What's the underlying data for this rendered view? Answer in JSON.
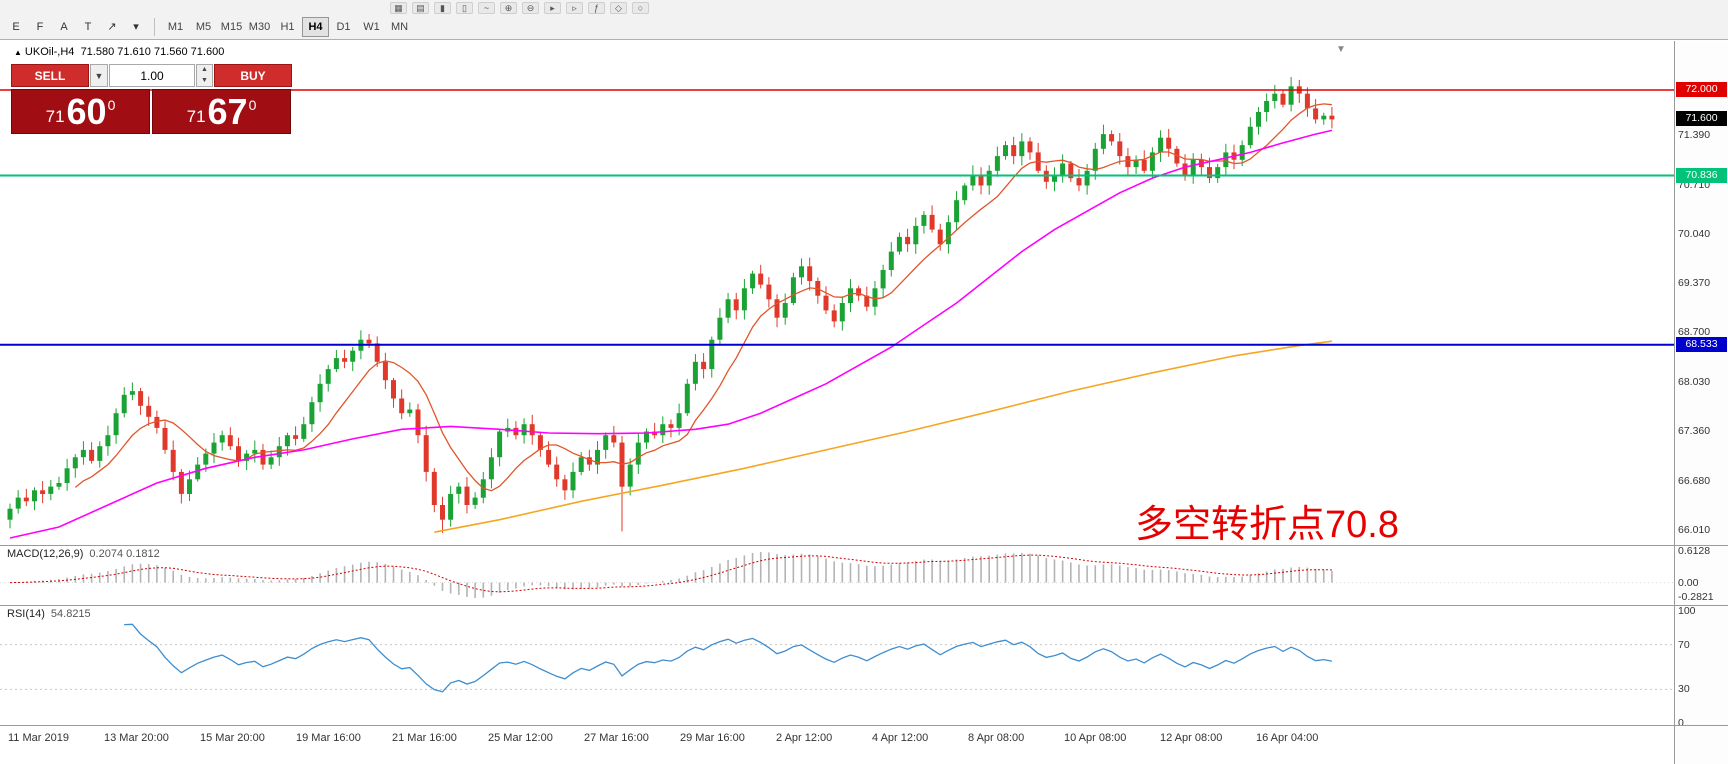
{
  "toolbar": {
    "top_icons": [
      {
        "name": "new-chart-icon",
        "glyph": "▦"
      },
      {
        "name": "profiles-icon",
        "glyph": "▤"
      },
      {
        "name": "chart-bars-icon",
        "glyph": "▮"
      },
      {
        "name": "chart-candles-icon",
        "glyph": "▯"
      },
      {
        "name": "chart-line-icon",
        "glyph": "~"
      },
      {
        "name": "zoom-in-icon",
        "glyph": "⊕"
      },
      {
        "name": "zoom-out-icon",
        "glyph": "⊖"
      },
      {
        "name": "auto-scroll-icon",
        "glyph": "▸"
      },
      {
        "name": "chart-shift-icon",
        "glyph": "▹"
      },
      {
        "name": "indicators-icon",
        "glyph": "ƒ"
      },
      {
        "name": "templates-icon",
        "glyph": "◇"
      },
      {
        "name": "periods-icon",
        "glyph": "○"
      }
    ],
    "tools": [
      {
        "name": "editor-icon",
        "glyph": "E"
      },
      {
        "name": "data-window-icon",
        "glyph": "F"
      },
      {
        "name": "text-tool-icon",
        "glyph": "A"
      },
      {
        "name": "text-label-tool-icon",
        "glyph": "T"
      },
      {
        "name": "arrow-tool-icon",
        "glyph": "↗"
      },
      {
        "name": "arrow-dropdown-icon",
        "glyph": "▾"
      }
    ],
    "timeframes": [
      {
        "label": "M1",
        "active": false
      },
      {
        "label": "M5",
        "active": false
      },
      {
        "label": "M15",
        "active": false
      },
      {
        "label": "M30",
        "active": false
      },
      {
        "label": "H1",
        "active": false
      },
      {
        "label": "H4",
        "active": true
      },
      {
        "label": "D1",
        "active": false
      },
      {
        "label": "W1",
        "active": false
      },
      {
        "label": "MN",
        "active": false
      }
    ]
  },
  "symbol_header": {
    "toggle_glyph": "▲",
    "name": "UKOil-,H4",
    "ohlc": "71.580 71.610 71.560 71.600"
  },
  "trade_panel": {
    "sell_label": "SELL",
    "buy_label": "BUY",
    "volume": "1.00",
    "sell_price_prefix": "71",
    "sell_price_big": "60",
    "sell_price_sup": "0",
    "buy_price_prefix": "71",
    "buy_price_big": "67",
    "buy_price_sup": "0"
  },
  "annotation": {
    "text": "多空转折点70.8",
    "color": "#e60000"
  },
  "chart_data": {
    "type": "candlestick",
    "symbol": "UKOil-",
    "timeframe": "H4",
    "ohlc_display": {
      "open": 71.58,
      "high": 71.61,
      "low": 71.56,
      "close": 71.6
    },
    "colors": {
      "bull": "#1aa334",
      "bear": "#e0392b",
      "ma_fast": "#e0562a",
      "ma_mid": "#ff00ff",
      "ma_slow": "#f5a623",
      "macd_hist": "#b4b4b4",
      "macd_signal": "#d00000",
      "rsi_line": "#3e8ed0",
      "level_dotted": "#c8c8c8"
    },
    "closes": [
      66.3,
      66.45,
      66.4,
      66.55,
      66.5,
      66.6,
      66.65,
      66.85,
      67.0,
      67.1,
      66.95,
      67.15,
      67.3,
      67.6,
      67.85,
      67.9,
      67.7,
      67.55,
      67.4,
      67.1,
      66.8,
      66.5,
      66.7,
      66.9,
      67.05,
      67.2,
      67.3,
      67.15,
      66.95,
      67.05,
      67.1,
      66.9,
      67.0,
      67.15,
      67.3,
      67.25,
      67.45,
      67.75,
      68.0,
      68.2,
      68.35,
      68.3,
      68.45,
      68.6,
      68.55,
      68.3,
      68.05,
      67.8,
      67.6,
      67.65,
      67.3,
      66.8,
      66.35,
      66.15,
      66.5,
      66.6,
      66.35,
      66.45,
      66.7,
      67.0,
      67.35,
      67.4,
      67.3,
      67.45,
      67.3,
      67.1,
      66.9,
      66.7,
      66.55,
      66.8,
      67.0,
      66.9,
      67.1,
      67.3,
      67.2,
      66.6,
      66.9,
      67.2,
      67.35,
      67.3,
      67.45,
      67.4,
      67.6,
      68.0,
      68.3,
      68.2,
      68.6,
      68.9,
      69.15,
      69.0,
      69.3,
      69.5,
      69.35,
      69.15,
      68.9,
      69.1,
      69.45,
      69.6,
      69.4,
      69.2,
      69.0,
      68.85,
      69.1,
      69.3,
      69.2,
      69.05,
      69.3,
      69.55,
      69.8,
      70.0,
      69.9,
      70.15,
      70.3,
      70.1,
      69.9,
      70.2,
      70.5,
      70.7,
      70.85,
      70.7,
      70.9,
      71.1,
      71.25,
      71.1,
      71.3,
      71.15,
      70.9,
      70.75,
      70.85,
      71.0,
      70.8,
      70.7,
      70.9,
      71.2,
      71.4,
      71.3,
      71.1,
      70.95,
      71.05,
      70.9,
      71.15,
      71.35,
      71.2,
      71.0,
      70.85,
      71.05,
      70.95,
      70.8,
      70.95,
      71.15,
      71.05,
      71.25,
      71.5,
      71.7,
      71.85,
      71.95,
      71.8,
      72.05,
      71.95,
      71.75,
      71.6,
      71.65,
      71.6
    ],
    "wick_overrides": {
      "53": {
        "low": 65.97
      },
      "75": {
        "low": 65.99
      },
      "157": {
        "high": 72.12
      }
    },
    "ma_fast_period": 9,
    "ma_mid_points": [
      [
        0,
        65.9
      ],
      [
        6,
        66.05
      ],
      [
        12,
        66.35
      ],
      [
        18,
        66.65
      ],
      [
        24,
        66.85
      ],
      [
        30,
        67.0
      ],
      [
        36,
        67.1
      ],
      [
        42,
        67.25
      ],
      [
        48,
        67.38
      ],
      [
        54,
        67.42
      ],
      [
        60,
        67.38
      ],
      [
        66,
        67.33
      ],
      [
        72,
        67.32
      ],
      [
        78,
        67.33
      ],
      [
        84,
        67.38
      ],
      [
        88,
        67.45
      ],
      [
        92,
        67.6
      ],
      [
        96,
        67.8
      ],
      [
        100,
        68.0
      ],
      [
        104,
        68.25
      ],
      [
        108,
        68.5
      ],
      [
        112,
        68.8
      ],
      [
        116,
        69.1
      ],
      [
        120,
        69.45
      ],
      [
        124,
        69.8
      ],
      [
        128,
        70.1
      ],
      [
        132,
        70.35
      ],
      [
        136,
        70.6
      ],
      [
        140,
        70.8
      ],
      [
        144,
        70.95
      ],
      [
        148,
        71.05
      ],
      [
        152,
        71.15
      ],
      [
        156,
        71.28
      ],
      [
        160,
        71.4
      ],
      [
        162,
        71.45
      ]
    ],
    "ma_slow_points": [
      [
        52,
        65.98
      ],
      [
        60,
        66.15
      ],
      [
        70,
        66.4
      ],
      [
        80,
        66.62
      ],
      [
        90,
        66.85
      ],
      [
        100,
        67.1
      ],
      [
        110,
        67.35
      ],
      [
        120,
        67.62
      ],
      [
        130,
        67.9
      ],
      [
        140,
        68.15
      ],
      [
        150,
        68.38
      ],
      [
        158,
        68.52
      ],
      [
        162,
        68.58
      ]
    ],
    "y_ticks": [
      "71.390",
      "70.710",
      "70.040",
      "69.370",
      "68.700",
      "68.030",
      "67.360",
      "66.680",
      "66.010"
    ],
    "hlines": [
      {
        "price": 72.0,
        "label": "72.000",
        "color": "#e00000"
      },
      {
        "price": 70.836,
        "label": "70.836",
        "color": "#00c278"
      },
      {
        "price": 68.533,
        "label": "68.533",
        "color": "#0000cc"
      }
    ],
    "current_price": {
      "price": 71.6,
      "label": "71.600",
      "color": "#000000"
    },
    "x_labels": [
      "11 Mar 2019",
      "13 Mar 20:00",
      "15 Mar 20:00",
      "19 Mar 16:00",
      "21 Mar 16:00",
      "25 Mar 12:00",
      "27 Mar 16:00",
      "29 Mar 16:00",
      "2 Apr 12:00",
      "4 Apr 12:00",
      "8 Apr 08:00",
      "10 Apr 08:00",
      "12 Apr 08:00",
      "16 Apr 04:00"
    ],
    "indicators": {
      "macd": {
        "title": "MACD(12,26,9)",
        "values": "0.2074 0.1812",
        "params": [
          12,
          26,
          9
        ],
        "levels": [
          "0.6128",
          "0.00",
          "-0.2821"
        ]
      },
      "rsi": {
        "title": "RSI(14)",
        "values": "54.8215",
        "params": [
          14
        ],
        "levels": [
          "100",
          "70",
          "30",
          "0"
        ]
      }
    }
  },
  "shift_marker_glyph": "▼"
}
